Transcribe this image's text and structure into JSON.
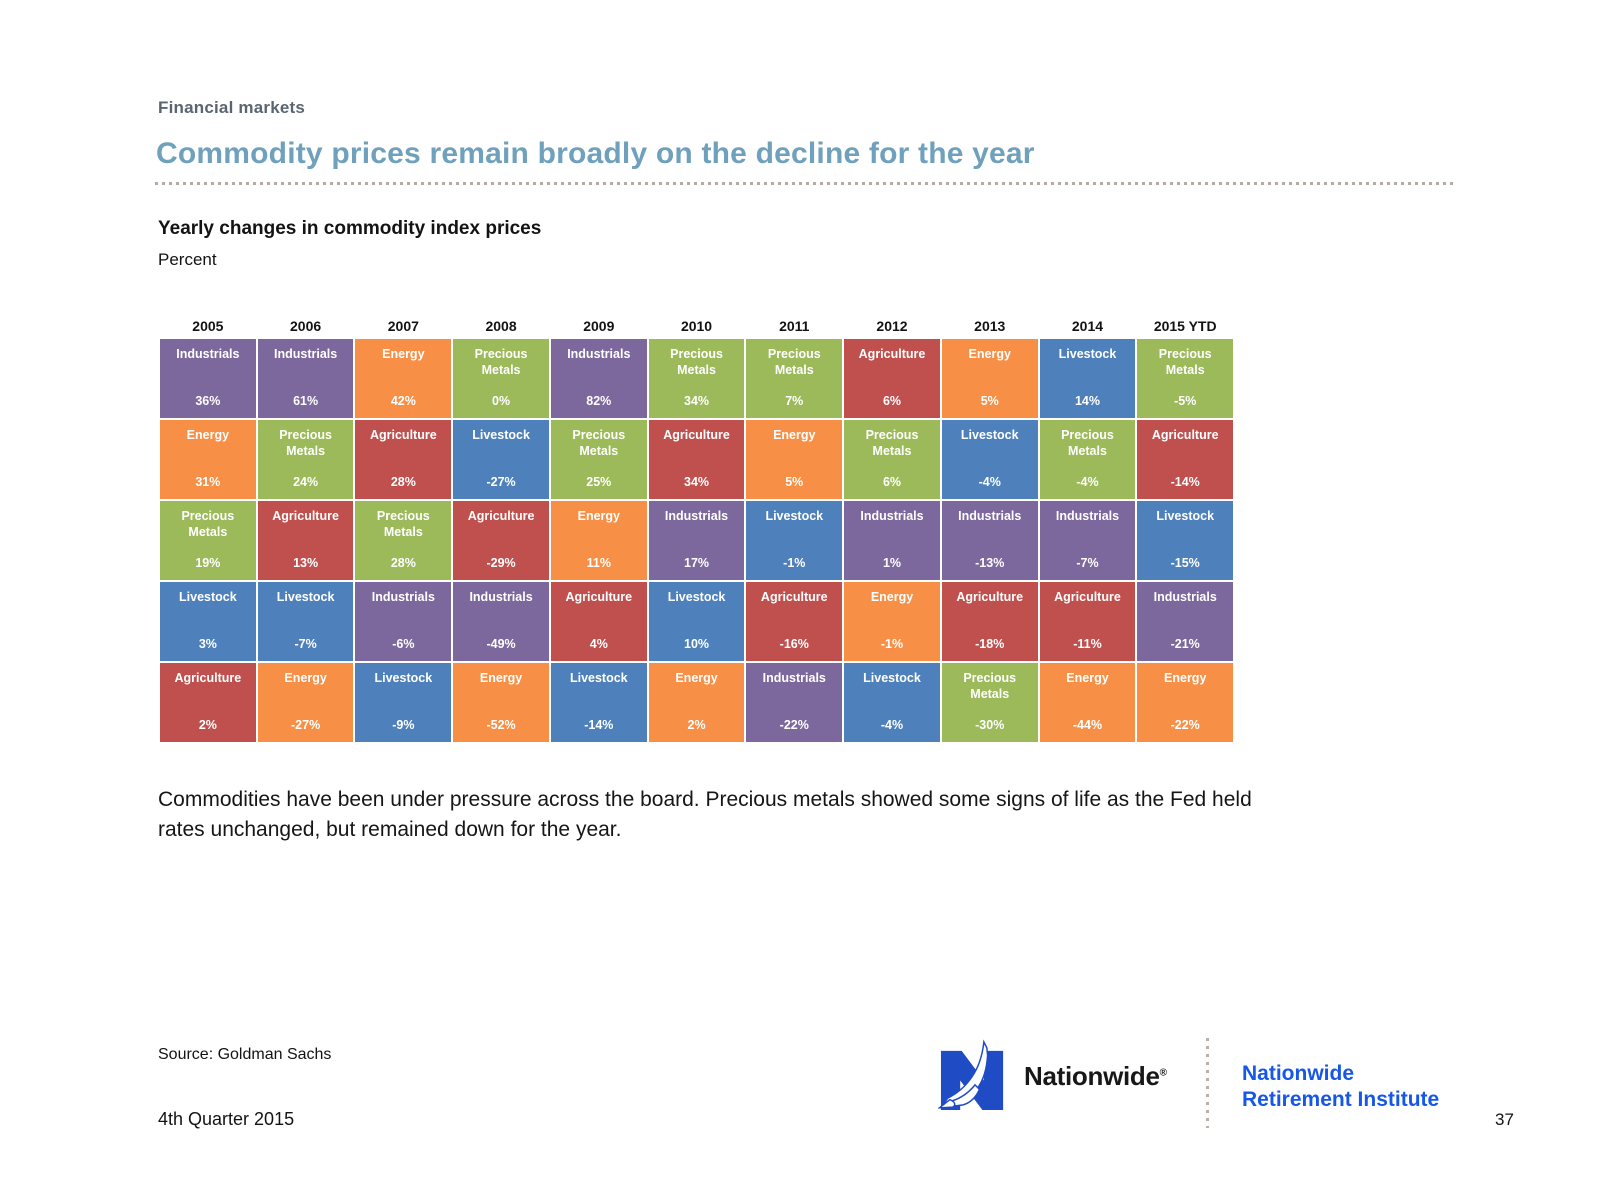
{
  "page": {
    "eyebrow": "Financial markets",
    "title": "Commodity prices remain broadly on the decline for the year",
    "chart_heading": "Yearly changes in commodity index prices",
    "chart_unit": "Percent",
    "body_text": "Commodities have been under pressure across the board. Precious metals showed some signs of life as the Fed held rates unchanged, but remained down for the year.",
    "source": "Source: Goldman Sachs",
    "quarter": "4th Quarter 2015",
    "page_number": "37",
    "wordmark": "Nationwide",
    "wordmark_reg": "®",
    "institute_line1": "Nationwide",
    "institute_line2": "Retirement Institute"
  },
  "colors": {
    "Industrials": "#7c689d",
    "Energy": "#f79046",
    "Precious Metals": "#9cba5a",
    "Livestock": "#4e81bc",
    "Agriculture": "#bf504e",
    "title_blue": "#6fa0bc",
    "eyebrow_gray": "#5b6571",
    "nationwide_logo_blue": "#1f4cc4",
    "institute_blue": "#1657e8"
  },
  "chart_data": {
    "type": "table",
    "title": "Yearly changes in commodity index prices",
    "unit": "Percent",
    "description": "Quilt chart ranking yearly commodity index price changes, best (top) to worst (bottom) per year",
    "legend_categories": [
      "Industrials",
      "Energy",
      "Precious Metals",
      "Livestock",
      "Agriculture"
    ],
    "columns": [
      {
        "year": "2005",
        "cells": [
          {
            "label": "Industrials",
            "value": "36%"
          },
          {
            "label": "Energy",
            "value": "31%"
          },
          {
            "label": "Precious Metals",
            "value": "19%"
          },
          {
            "label": "Livestock",
            "value": "3%"
          },
          {
            "label": "Agriculture",
            "value": "2%"
          }
        ]
      },
      {
        "year": "2006",
        "cells": [
          {
            "label": "Industrials",
            "value": "61%"
          },
          {
            "label": "Precious Metals",
            "value": "24%"
          },
          {
            "label": "Agriculture",
            "value": "13%"
          },
          {
            "label": "Livestock",
            "value": "-7%"
          },
          {
            "label": "Energy",
            "value": "-27%"
          }
        ]
      },
      {
        "year": "2007",
        "cells": [
          {
            "label": "Energy",
            "value": "42%"
          },
          {
            "label": "Agriculture",
            "value": "28%"
          },
          {
            "label": "Precious Metals",
            "value": "28%"
          },
          {
            "label": "Industrials",
            "value": "-6%"
          },
          {
            "label": "Livestock",
            "value": "-9%"
          }
        ]
      },
      {
        "year": "2008",
        "cells": [
          {
            "label": "Precious Metals",
            "value": "0%"
          },
          {
            "label": "Livestock",
            "value": "-27%"
          },
          {
            "label": "Agriculture",
            "value": "-29%"
          },
          {
            "label": "Industrials",
            "value": "-49%"
          },
          {
            "label": "Energy",
            "value": "-52%"
          }
        ]
      },
      {
        "year": "2009",
        "cells": [
          {
            "label": "Industrials",
            "value": "82%"
          },
          {
            "label": "Precious Metals",
            "value": "25%"
          },
          {
            "label": "Energy",
            "value": "11%"
          },
          {
            "label": "Agriculture",
            "value": "4%"
          },
          {
            "label": "Livestock",
            "value": "-14%"
          }
        ]
      },
      {
        "year": "2010",
        "cells": [
          {
            "label": "Precious Metals",
            "value": "34%"
          },
          {
            "label": "Agriculture",
            "value": "34%"
          },
          {
            "label": "Industrials",
            "value": "17%"
          },
          {
            "label": "Livestock",
            "value": "10%"
          },
          {
            "label": "Energy",
            "value": "2%"
          }
        ]
      },
      {
        "year": "2011",
        "cells": [
          {
            "label": "Precious Metals",
            "value": "7%"
          },
          {
            "label": "Energy",
            "value": "5%"
          },
          {
            "label": "Livestock",
            "value": "-1%"
          },
          {
            "label": "Agriculture",
            "value": "-16%"
          },
          {
            "label": "Industrials",
            "value": "-22%"
          }
        ]
      },
      {
        "year": "2012",
        "cells": [
          {
            "label": "Agriculture",
            "value": "6%"
          },
          {
            "label": "Precious Metals",
            "value": "6%"
          },
          {
            "label": "Industrials",
            "value": "1%"
          },
          {
            "label": "Energy",
            "value": "-1%"
          },
          {
            "label": "Livestock",
            "value": "-4%"
          }
        ]
      },
      {
        "year": "2013",
        "cells": [
          {
            "label": "Energy",
            "value": "5%"
          },
          {
            "label": "Livestock",
            "value": "-4%"
          },
          {
            "label": "Industrials",
            "value": "-13%"
          },
          {
            "label": "Agriculture",
            "value": "-18%"
          },
          {
            "label": "Precious Metals",
            "value": "-30%"
          }
        ]
      },
      {
        "year": "2014",
        "cells": [
          {
            "label": "Livestock",
            "value": "14%"
          },
          {
            "label": "Precious Metals",
            "value": "-4%"
          },
          {
            "label": "Industrials",
            "value": "-7%"
          },
          {
            "label": "Agriculture",
            "value": "-11%"
          },
          {
            "label": "Energy",
            "value": "-44%"
          }
        ]
      },
      {
        "year": "2015 YTD",
        "cells": [
          {
            "label": "Precious Metals",
            "value": "-5%"
          },
          {
            "label": "Agriculture",
            "value": "-14%"
          },
          {
            "label": "Livestock",
            "value": "-15%"
          },
          {
            "label": "Industrials",
            "value": "-21%"
          },
          {
            "label": "Energy",
            "value": "-22%"
          }
        ]
      }
    ]
  }
}
